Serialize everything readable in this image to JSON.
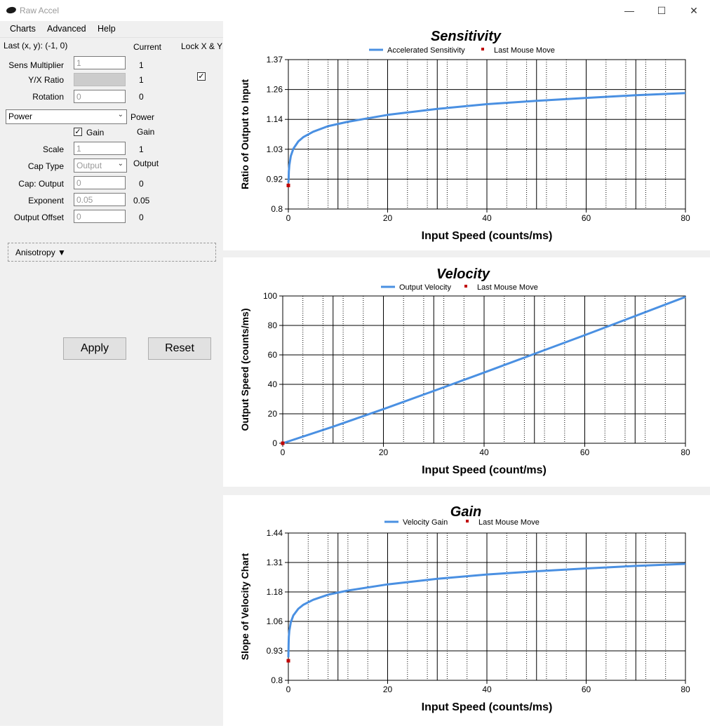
{
  "window": {
    "title": "Raw Accel",
    "minimize": "—",
    "maximize": "☐",
    "close": "✕"
  },
  "menu": [
    "Charts",
    "Advanced",
    "Help"
  ],
  "header": {
    "last_xy": "Last (x, y): (-1, 0)",
    "current": "Current",
    "lock": "Lock X & Y"
  },
  "fields": {
    "sens_multiplier": {
      "label": "Sens Multiplier",
      "value": "1",
      "current": "1"
    },
    "yx_ratio": {
      "label": "Y/X Ratio",
      "value": "",
      "current": "1"
    },
    "rotation": {
      "label": "Rotation",
      "value": "0",
      "current": "0"
    },
    "accel_type": {
      "selected": "Power",
      "current": "Power"
    },
    "gain": {
      "label": "Gain",
      "checked": true,
      "current": "Gain"
    },
    "scale": {
      "label": "Scale",
      "value": "1",
      "current": "1"
    },
    "cap_type": {
      "label": "Cap Type",
      "selected": "Output",
      "current": "Output"
    },
    "cap_output": {
      "label": "Cap: Output",
      "value": "0",
      "current": "0"
    },
    "exponent": {
      "label": "Exponent",
      "value": "0.05",
      "current": "0.05"
    },
    "output_offset": {
      "label": "Output Offset",
      "value": "0",
      "current": "0"
    }
  },
  "anisotropy": "Anisotropy ▼",
  "buttons": {
    "apply": "Apply",
    "reset": "Reset"
  },
  "chart_data": [
    {
      "type": "line",
      "title": "Sensitivity",
      "xlabel": "Input Speed (counts/ms)",
      "ylabel": "Ratio of Output to Input",
      "xlim": [
        0,
        80
      ],
      "ylim": [
        0.8,
        1.37
      ],
      "xticks": [
        "0",
        "20",
        "40",
        "60",
        "80"
      ],
      "yticks": [
        "0.8",
        "0.92",
        "1.03",
        "1.14",
        "1.26",
        "1.37"
      ],
      "legend": {
        "series": "Accelerated Sensitivity",
        "marker": "Last Mouse Move"
      },
      "series": [
        {
          "name": "Accelerated Sensitivity",
          "color": "#4a90e2",
          "x": [
            0,
            0.05,
            0.1,
            0.2,
            0.5,
            1,
            2,
            3,
            5,
            8,
            12,
            20,
            30,
            40,
            50,
            60,
            70,
            80
          ],
          "y": [
            0.9,
            0.913,
            0.943,
            0.967,
            1.002,
            1.03,
            1.058,
            1.074,
            1.095,
            1.116,
            1.133,
            1.159,
            1.182,
            1.2,
            1.213,
            1.224,
            1.234,
            1.242
          ]
        }
      ],
      "last_move": {
        "x": 0,
        "y": 0.89,
        "color": "#c00000"
      }
    },
    {
      "type": "line",
      "title": "Velocity",
      "xlabel": "Input Speed (count/ms)",
      "ylabel": "Output Speed (counts/ms)",
      "xlim": [
        0,
        80
      ],
      "ylim": [
        0,
        100
      ],
      "xticks": [
        "0",
        "20",
        "40",
        "60",
        "80"
      ],
      "yticks": [
        "0",
        "20",
        "40",
        "60",
        "80",
        "100"
      ],
      "legend": {
        "series": "Output Velocity",
        "marker": "Last Mouse Move"
      },
      "series": [
        {
          "name": "Output Velocity",
          "color": "#4a90e2",
          "x": [
            0,
            10,
            20,
            30,
            40,
            50,
            60,
            70,
            80
          ],
          "y": [
            0,
            11.3,
            23.2,
            35.5,
            48,
            60.7,
            73.4,
            86.4,
            99.4
          ]
        }
      ],
      "last_move": {
        "x": 0,
        "y": 0,
        "color": "#c00000"
      }
    },
    {
      "type": "line",
      "title": "Gain",
      "xlabel": "Input Speed (counts/ms)",
      "ylabel": "Slope of Velocity Chart",
      "xlim": [
        0,
        80
      ],
      "ylim": [
        0.8,
        1.44
      ],
      "xticks": [
        "0",
        "20",
        "40",
        "60",
        "80"
      ],
      "yticks": [
        "0.8",
        "0.93",
        "1.06",
        "1.18",
        "1.31",
        "1.44"
      ],
      "legend": {
        "series": "Velocity Gain",
        "marker": "Last Mouse Move"
      },
      "series": [
        {
          "name": "Velocity Gain",
          "color": "#4a90e2",
          "x": [
            0,
            0.05,
            0.1,
            0.2,
            0.5,
            1,
            2,
            3,
            5,
            8,
            12,
            20,
            30,
            40,
            50,
            60,
            70,
            80
          ],
          "y": [
            0.9,
            0.96,
            0.99,
            1.015,
            1.052,
            1.082,
            1.111,
            1.128,
            1.15,
            1.172,
            1.19,
            1.217,
            1.241,
            1.26,
            1.274,
            1.286,
            1.297,
            1.306
          ]
        }
      ],
      "last_move": {
        "x": 0,
        "y": 0.885,
        "color": "#c00000"
      }
    }
  ]
}
